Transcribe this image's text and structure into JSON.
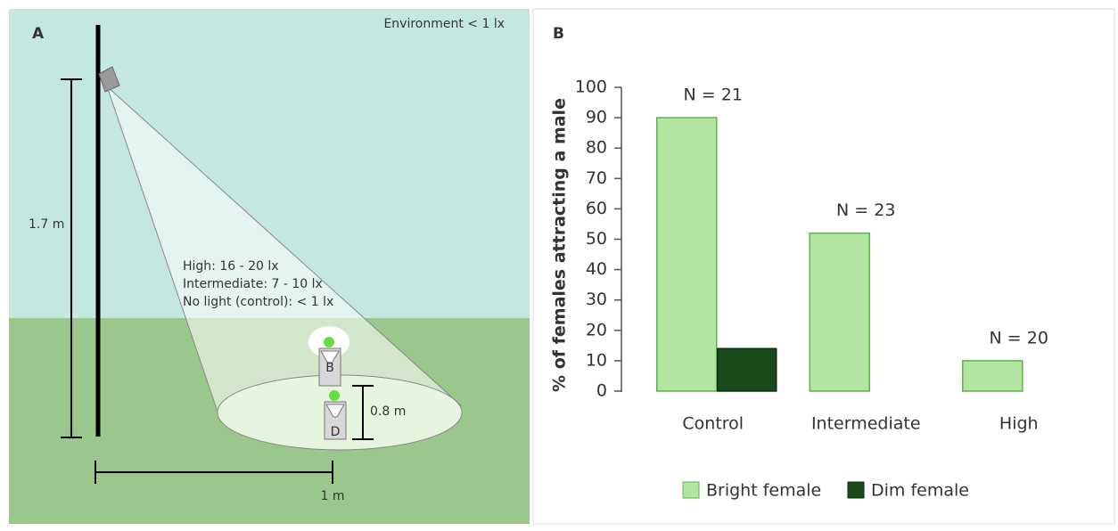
{
  "panel_a": {
    "label": "A",
    "environment": "Environment < 1 lx",
    "height": "1.7 m",
    "levels": [
      "High: 16 - 20 lx",
      "Intermediate: 7 - 10 lx",
      "No light (control): < 1 lx"
    ],
    "cage_b": "B",
    "cage_d": "D",
    "spacing": "0.8 m",
    "distance": "1 m"
  },
  "chart_data": {
    "type": "bar",
    "panel_label": "B",
    "y_label": "% of females attracting a male",
    "categories": [
      "Control",
      "Intermediate",
      "High"
    ],
    "n_labels": [
      "N = 21",
      "N = 23",
      "N = 20"
    ],
    "series": [
      {
        "name": "Bright female",
        "color": "#b2e5a1",
        "edge": "#5bb24c",
        "values": [
          90,
          52,
          10
        ]
      },
      {
        "name": "Dim female",
        "color": "#184a1a",
        "edge": "#0e2f10",
        "values": [
          14,
          0,
          0
        ]
      }
    ],
    "ylim": [
      0,
      100
    ],
    "yticks": [
      0,
      10,
      20,
      30,
      40,
      50,
      60,
      70,
      80,
      90,
      100
    ],
    "grid": false
  }
}
